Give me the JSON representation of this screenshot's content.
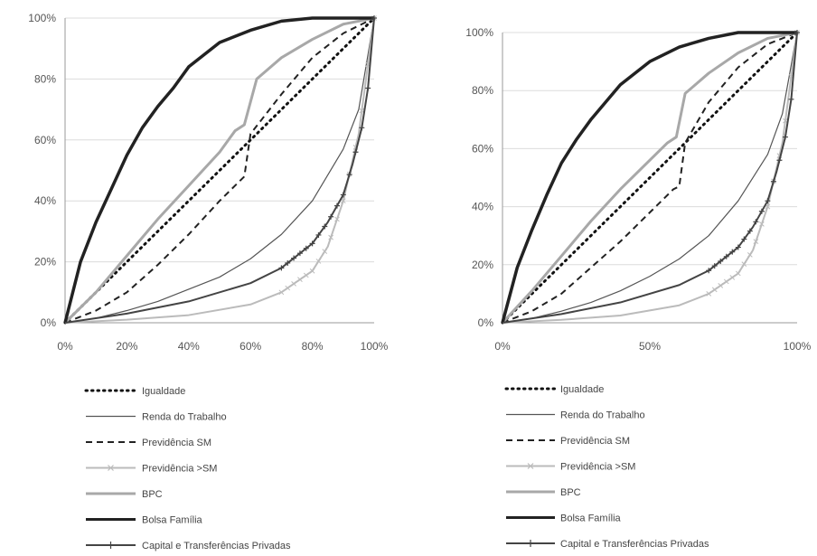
{
  "chart_data": [
    {
      "type": "line",
      "title": "",
      "xlabel": "",
      "ylabel": "",
      "xlim": [
        0,
        100
      ],
      "ylim": [
        0,
        100
      ],
      "grid": "horizontal",
      "legend_placement": "bottom",
      "x_ticks": [
        "0%",
        "20%",
        "40%",
        "60%",
        "80%",
        "100%"
      ],
      "x_tick_values": [
        0,
        20,
        40,
        60,
        80,
        100
      ],
      "y_ticks": [
        "0%",
        "20%",
        "40%",
        "60%",
        "80%",
        "100%"
      ],
      "y_tick_values": [
        0,
        20,
        40,
        60,
        80,
        100
      ],
      "series": [
        {
          "name": "Igualdade",
          "style": "dotted",
          "color": "#111111",
          "x": [
            0,
            100
          ],
          "y": [
            0,
            100
          ]
        },
        {
          "name": "Renda do Trabalho",
          "style": "thin",
          "color": "#555555",
          "x": [
            0,
            10,
            20,
            30,
            40,
            50,
            60,
            70,
            80,
            90,
            95,
            100
          ],
          "y": [
            0,
            1.5,
            4,
            7,
            11,
            15,
            21,
            29,
            40,
            57,
            70,
            100
          ]
        },
        {
          "name": "Previdência SM",
          "style": "dashed",
          "color": "#222222",
          "x": [
            0,
            10,
            20,
            30,
            40,
            50,
            55,
            58,
            60,
            70,
            80,
            90,
            100
          ],
          "y": [
            0,
            4,
            10,
            19,
            29,
            40,
            45,
            48,
            62,
            75,
            87,
            95,
            100
          ]
        },
        {
          "name": "Previdência >SM",
          "style": "light-x",
          "color": "#bbbbbb",
          "x": [
            0,
            20,
            40,
            60,
            70,
            80,
            85,
            90,
            95,
            100
          ],
          "y": [
            0,
            1,
            2.5,
            6,
            10,
            17,
            25,
            40,
            62,
            100
          ]
        },
        {
          "name": "BPC",
          "style": "light-thick",
          "color": "#a8a8a8",
          "x": [
            0,
            10,
            20,
            30,
            40,
            50,
            55,
            58,
            62,
            70,
            80,
            90,
            100
          ],
          "y": [
            0,
            10,
            22,
            34,
            45,
            56,
            63,
            65,
            80,
            87,
            93,
            98,
            100
          ]
        },
        {
          "name": "Bolsa Família",
          "style": "thick",
          "color": "#222222",
          "x": [
            0,
            5,
            10,
            15,
            20,
            25,
            30,
            35,
            40,
            50,
            60,
            70,
            80,
            90,
            100
          ],
          "y": [
            0,
            20,
            33,
            44,
            55,
            64,
            71,
            77,
            84,
            92,
            96,
            99,
            100,
            100,
            100
          ]
        },
        {
          "name": "Capital e Transferências Privadas",
          "style": "dark-plus",
          "color": "#444444",
          "x": [
            0,
            20,
            40,
            60,
            70,
            80,
            85,
            90,
            93,
            96,
            98,
            100
          ],
          "y": [
            0,
            3,
            7,
            13,
            18,
            26,
            33,
            42,
            52,
            64,
            77,
            100
          ]
        }
      ]
    },
    {
      "type": "line",
      "title": "",
      "xlabel": "",
      "ylabel": "",
      "xlim": [
        0,
        100
      ],
      "ylim": [
        0,
        100
      ],
      "grid": "horizontal",
      "legend_placement": "bottom",
      "x_ticks": [
        "0%",
        "50%",
        "100%"
      ],
      "x_tick_values": [
        0,
        50,
        100
      ],
      "y_ticks": [
        "0%",
        "20%",
        "40%",
        "60%",
        "80%",
        "100%"
      ],
      "y_tick_values": [
        0,
        20,
        40,
        60,
        80,
        100
      ],
      "series": [
        {
          "name": "Igualdade",
          "style": "dotted",
          "color": "#111111",
          "x": [
            0,
            100
          ],
          "y": [
            0,
            100
          ]
        },
        {
          "name": "Renda do Trabalho",
          "style": "thin",
          "color": "#555555",
          "x": [
            0,
            10,
            20,
            30,
            40,
            50,
            60,
            70,
            80,
            90,
            95,
            100
          ],
          "y": [
            0,
            1.5,
            4,
            7,
            11,
            16,
            22,
            30,
            42,
            58,
            72,
            100
          ]
        },
        {
          "name": "Previdência SM",
          "style": "dashed",
          "color": "#222222",
          "x": [
            0,
            10,
            20,
            30,
            40,
            50,
            58,
            60,
            62,
            70,
            80,
            90,
            100
          ],
          "y": [
            0,
            4,
            10,
            19,
            28,
            38,
            46,
            47,
            62,
            76,
            88,
            96,
            100
          ]
        },
        {
          "name": "Previdência >SM",
          "style": "light-x",
          "color": "#bbbbbb",
          "x": [
            0,
            20,
            40,
            60,
            70,
            80,
            85,
            90,
            95,
            100
          ],
          "y": [
            0,
            1,
            2.5,
            6,
            10,
            17,
            25,
            40,
            62,
            100
          ]
        },
        {
          "name": "BPC",
          "style": "light-thick",
          "color": "#a8a8a8",
          "x": [
            0,
            10,
            20,
            30,
            40,
            50,
            56,
            59,
            62,
            70,
            80,
            90,
            100
          ],
          "y": [
            0,
            11,
            23,
            35,
            46,
            56,
            62,
            64,
            79,
            86,
            93,
            98,
            100
          ]
        },
        {
          "name": "Bolsa Família",
          "style": "thick",
          "color": "#222222",
          "x": [
            0,
            5,
            10,
            15,
            20,
            25,
            30,
            35,
            40,
            50,
            60,
            70,
            80,
            90,
            100
          ],
          "y": [
            0,
            19,
            32,
            44,
            55,
            63,
            70,
            76,
            82,
            90,
            95,
            98,
            100,
            100,
            100
          ]
        },
        {
          "name": "Capital e Transferências Privadas",
          "style": "dark-plus",
          "color": "#444444",
          "x": [
            0,
            20,
            40,
            60,
            70,
            80,
            85,
            90,
            93,
            96,
            98,
            100
          ],
          "y": [
            0,
            3,
            7,
            13,
            18,
            26,
            33,
            42,
            52,
            64,
            77,
            100
          ]
        }
      ]
    }
  ]
}
